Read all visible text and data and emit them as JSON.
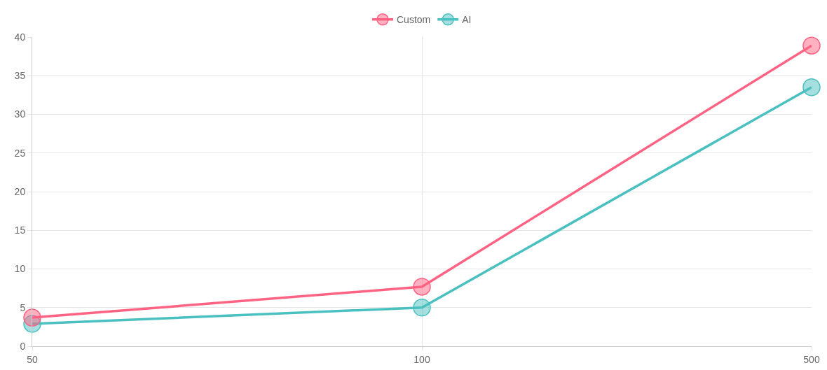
{
  "chart_data": {
    "type": "line",
    "categories": [
      "50",
      "100",
      "500"
    ],
    "series": [
      {
        "name": "Custom",
        "color": "#ff6384",
        "values": [
          3.7,
          7.7,
          38.9
        ]
      },
      {
        "name": "AI",
        "color": "#4bc0c0",
        "values": [
          2.9,
          5.0,
          33.5
        ]
      }
    ],
    "ylim": [
      0,
      40
    ],
    "yticks": [
      0,
      5,
      10,
      15,
      20,
      25,
      30,
      35,
      40
    ],
    "grid": true,
    "legend": "top",
    "marker": "circle",
    "line_style": "solid"
  }
}
